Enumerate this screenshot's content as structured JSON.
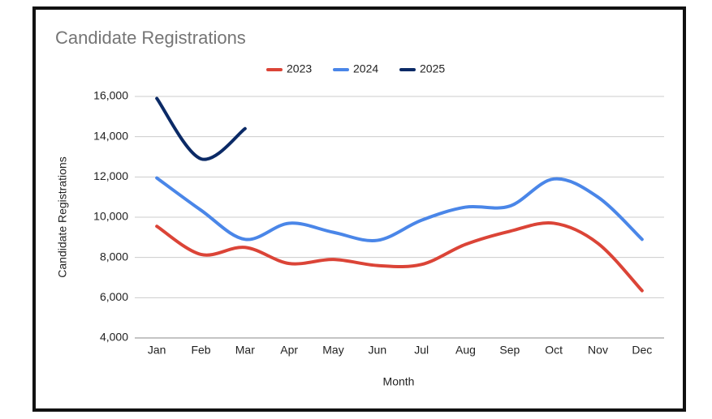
{
  "chart_data": {
    "type": "line",
    "title": "Candidate Registrations",
    "xlabel": "Month",
    "ylabel": "Candidate Registrations",
    "categories": [
      "Jan",
      "Feb",
      "Mar",
      "Apr",
      "May",
      "Jun",
      "Jul",
      "Aug",
      "Sep",
      "Oct",
      "Nov",
      "Dec"
    ],
    "series": [
      {
        "name": "2023",
        "color": "#db4437",
        "values": [
          9550,
          8150,
          8500,
          7700,
          7900,
          7600,
          7650,
          8650,
          9300,
          9700,
          8700,
          6350
        ]
      },
      {
        "name": "2024",
        "color": "#4a86e8",
        "values": [
          11950,
          10350,
          8900,
          9700,
          9250,
          8850,
          9850,
          10500,
          10550,
          11900,
          11000,
          8900
        ]
      },
      {
        "name": "2025",
        "color": "#0b2a66",
        "values": [
          15900,
          12900,
          14400,
          null,
          null,
          null,
          null,
          null,
          null,
          null,
          null,
          null
        ]
      }
    ],
    "ylim": [
      4000,
      16000
    ],
    "yticks": [
      {
        "value": 4000,
        "label": "4,000"
      },
      {
        "value": 6000,
        "label": "6,000"
      },
      {
        "value": 8000,
        "label": "8,000"
      },
      {
        "value": 10000,
        "label": "10,000"
      },
      {
        "value": 12000,
        "label": "12,000"
      },
      {
        "value": 14000,
        "label": "14,000"
      },
      {
        "value": 16000,
        "label": "16,000"
      }
    ],
    "grid": true,
    "legend": "top",
    "smooth": true
  }
}
